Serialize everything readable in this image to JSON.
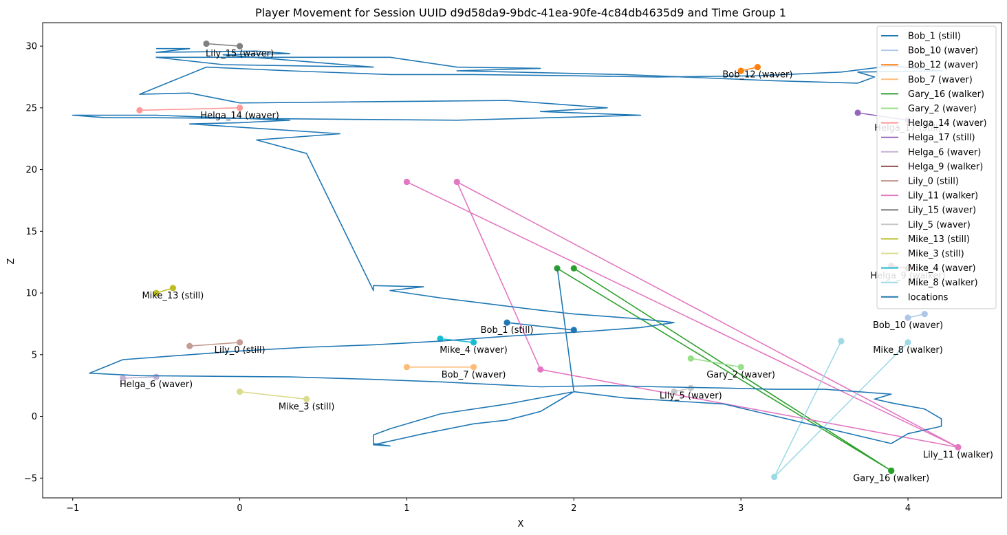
{
  "chart_data": {
    "type": "line",
    "title": "Player Movement for Session UUID d9d58da9-9bdc-41ea-90fe-4c84db4635d9 and Time Group 1",
    "xlabel": "X",
    "ylabel": "Z",
    "xlim": [
      -1.18,
      4.56
    ],
    "ylim": [
      -6.6,
      31.9
    ],
    "xticks": [
      -1,
      0,
      1,
      2,
      3,
      4
    ],
    "yticks": [
      -5,
      0,
      5,
      10,
      15,
      20,
      25,
      30
    ],
    "grid": false,
    "legend_position": "upper right",
    "series": [
      {
        "name": "Bob_1 (still)",
        "color": "#1f77b4",
        "points": [
          [
            2.0,
            7.0
          ],
          [
            1.6,
            7.6
          ]
        ],
        "label": "Bob_1 (still)"
      },
      {
        "name": "Bob_10 (waver)",
        "color": "#aec7e8",
        "points": [
          [
            4.1,
            8.3
          ],
          [
            4.0,
            8.0
          ]
        ],
        "label": "Bob_10 (waver)"
      },
      {
        "name": "Bob_12 (waver)",
        "color": "#ff7f0e",
        "points": [
          [
            3.0,
            28.0
          ],
          [
            3.1,
            28.3
          ]
        ],
        "label": "Bob_12 (waver)"
      },
      {
        "name": "Bob_7 (waver)",
        "color": "#ffbb78",
        "points": [
          [
            1.0,
            4.0
          ],
          [
            1.4,
            4.0
          ]
        ],
        "label": "Bob_7 (waver)"
      },
      {
        "name": "Gary_16 (walker)",
        "color": "#2ca02c",
        "points": [
          [
            1.9,
            12.0
          ],
          [
            3.9,
            -4.4
          ],
          [
            2.0,
            12.0
          ],
          [
            3.9,
            -4.4
          ]
        ],
        "label": "Gary_16 (walker)"
      },
      {
        "name": "Gary_2 (waver)",
        "color": "#98df8a",
        "points": [
          [
            2.7,
            4.7
          ],
          [
            3.0,
            4.0
          ]
        ],
        "label": "Gary_2 (waver)"
      },
      {
        "name": "Helga_14 (waver)",
        "color": "#ff9896",
        "points": [
          [
            -0.6,
            24.8
          ],
          [
            0.0,
            25.0
          ]
        ],
        "label": "Helga_14 (waver)"
      },
      {
        "name": "Helga_17 (still)",
        "color": "#9467bd",
        "points": [
          [
            3.7,
            24.6
          ],
          [
            4.0,
            24.0
          ]
        ],
        "label": "Helga_17 (still)"
      },
      {
        "name": "Helga_6 (waver)",
        "color": "#c5b0d5",
        "points": [
          [
            -0.7,
            3.1
          ],
          [
            -0.5,
            3.2
          ]
        ],
        "label": "Helga_6 (waver)"
      },
      {
        "name": "Helga_9 (walker)",
        "color": "#8c564b",
        "points": [
          [
            3.9,
            12.2
          ],
          [
            4.0,
            12.0
          ]
        ],
        "label": "Helga_9 (walker)"
      },
      {
        "name": "Lily_0 (still)",
        "color": "#c49c94",
        "points": [
          [
            -0.3,
            5.7
          ],
          [
            0.0,
            6.0
          ]
        ],
        "label": "Lily_0 (still)"
      },
      {
        "name": "Lily_11 (walker)",
        "color": "#e377c2",
        "points": [
          [
            1.0,
            19.0
          ],
          [
            4.3,
            -2.5
          ],
          [
            1.3,
            19.0
          ],
          [
            1.8,
            3.8
          ],
          [
            4.3,
            -2.5
          ]
        ],
        "label": "Lily_11 (walker)"
      },
      {
        "name": "Lily_15 (waver)",
        "color": "#7f7f7f",
        "points": [
          [
            -0.2,
            30.2
          ],
          [
            0.0,
            30.0
          ]
        ],
        "label": "Lily_15 (waver)"
      },
      {
        "name": "Lily_5 (waver)",
        "color": "#c7c7c7",
        "points": [
          [
            2.6,
            2.0
          ],
          [
            2.7,
            2.3
          ]
        ],
        "label": "Lily_5 (waver)"
      },
      {
        "name": "Mike_13 (still)",
        "color": "#bcbd22",
        "points": [
          [
            -0.5,
            10.0
          ],
          [
            -0.4,
            10.4
          ]
        ],
        "label": "Mike_13 (still)"
      },
      {
        "name": "Mike_3 (still)",
        "color": "#dbdb8d",
        "points": [
          [
            0.0,
            2.0
          ],
          [
            0.4,
            1.4
          ]
        ],
        "label": "Mike_3 (still)"
      },
      {
        "name": "Mike_4 (waver)",
        "color": "#17becf",
        "points": [
          [
            1.2,
            6.3
          ],
          [
            1.4,
            6.0
          ]
        ],
        "label": "Mike_4 (waver)"
      },
      {
        "name": "Mike_8 (walker)",
        "color": "#9edae5",
        "points": [
          [
            3.6,
            6.1
          ],
          [
            3.2,
            -4.9
          ],
          [
            4.0,
            6.0
          ]
        ],
        "label": "Mike_8 (walker)"
      },
      {
        "name": "locations",
        "color": "#1f77b4",
        "points": [
          [
            -0.5,
            29.8
          ],
          [
            -0.3,
            29.8
          ],
          [
            -0.5,
            29.5
          ],
          [
            0.1,
            29.6
          ],
          [
            0.3,
            29.4
          ],
          [
            -0.1,
            29.3
          ],
          [
            0.8,
            28.3
          ],
          [
            -0.1,
            28.5
          ],
          [
            -0.5,
            29.1
          ],
          [
            0.9,
            29.1
          ],
          [
            1.3,
            28.3
          ],
          [
            1.8,
            28.2
          ],
          [
            1.3,
            28.0
          ],
          [
            2.3,
            27.7
          ],
          [
            3.2,
            27.2
          ],
          [
            3.7,
            27.0
          ],
          [
            3.8,
            27.5
          ],
          [
            3.7,
            27.9
          ],
          [
            4.2,
            28.0
          ],
          [
            3.9,
            28.4
          ],
          [
            3.6,
            27.9
          ],
          [
            3.1,
            27.6
          ],
          [
            2.5,
            27.5
          ],
          [
            2.0,
            27.6
          ],
          [
            1.4,
            27.7
          ],
          [
            0.9,
            27.7
          ],
          [
            0.3,
            28.0
          ],
          [
            -0.2,
            28.3
          ],
          [
            -0.6,
            26.1
          ],
          [
            -0.3,
            26.2
          ],
          [
            0.0,
            25.4
          ],
          [
            1.6,
            25.6
          ],
          [
            2.2,
            25.0
          ],
          [
            1.8,
            24.7
          ],
          [
            2.4,
            24.4
          ],
          [
            1.3,
            24.0
          ],
          [
            -0.5,
            24.2
          ],
          [
            -0.8,
            24.2
          ],
          [
            -1.0,
            24.4
          ],
          [
            -0.5,
            24.4
          ],
          [
            0.3,
            24.0
          ],
          [
            0.0,
            23.8
          ],
          [
            -0.3,
            23.7
          ],
          [
            0.6,
            22.9
          ],
          [
            0.1,
            22.4
          ],
          [
            0.4,
            21.3
          ],
          [
            0.8,
            10.2
          ],
          [
            0.8,
            10.6
          ],
          [
            1.1,
            10.5
          ],
          [
            0.9,
            10.2
          ],
          [
            1.2,
            9.6
          ],
          [
            1.5,
            9.1
          ],
          [
            1.8,
            8.6
          ],
          [
            2.0,
            8.3
          ],
          [
            2.2,
            8.1
          ],
          [
            2.4,
            7.9
          ],
          [
            2.6,
            7.6
          ],
          [
            2.4,
            7.2
          ],
          [
            2.1,
            6.9
          ],
          [
            1.6,
            6.5
          ],
          [
            1.2,
            6.1
          ],
          [
            0.8,
            5.8
          ],
          [
            0.4,
            5.6
          ],
          [
            0.0,
            5.3
          ],
          [
            -0.3,
            5.0
          ],
          [
            -0.5,
            4.8
          ],
          [
            -0.7,
            4.6
          ],
          [
            -0.9,
            3.5
          ],
          [
            -0.6,
            3.3
          ],
          [
            0.3,
            3.2
          ],
          [
            0.8,
            3.0
          ],
          [
            1.2,
            2.8
          ],
          [
            1.5,
            2.6
          ],
          [
            1.8,
            2.4
          ],
          [
            2.2,
            2.5
          ],
          [
            2.5,
            2.4
          ],
          [
            2.9,
            2.3
          ],
          [
            3.2,
            2.2
          ],
          [
            3.5,
            2.2
          ],
          [
            3.7,
            2.0
          ],
          [
            3.9,
            1.8
          ],
          [
            3.8,
            1.4
          ],
          [
            3.9,
            1.1
          ],
          [
            4.1,
            0.6
          ],
          [
            4.2,
            -0.2
          ],
          [
            4.2,
            -0.8
          ],
          [
            4.0,
            -1.4
          ],
          [
            3.9,
            -2.2
          ],
          [
            2.9,
            1.0
          ],
          [
            2.3,
            1.5
          ],
          [
            2.0,
            2.0
          ],
          [
            1.6,
            1.0
          ],
          [
            1.2,
            0.2
          ],
          [
            0.9,
            -1.0
          ],
          [
            0.8,
            -1.5
          ],
          [
            0.8,
            -2.2
          ],
          [
            0.9,
            -2.4
          ],
          [
            0.8,
            -2.3
          ],
          [
            1.1,
            -1.4
          ],
          [
            1.4,
            -0.6
          ],
          [
            1.6,
            -0.3
          ],
          [
            1.8,
            0.4
          ],
          [
            1.9,
            1.2
          ],
          [
            2.0,
            2.0
          ],
          [
            1.9,
            12.1
          ]
        ]
      }
    ]
  }
}
